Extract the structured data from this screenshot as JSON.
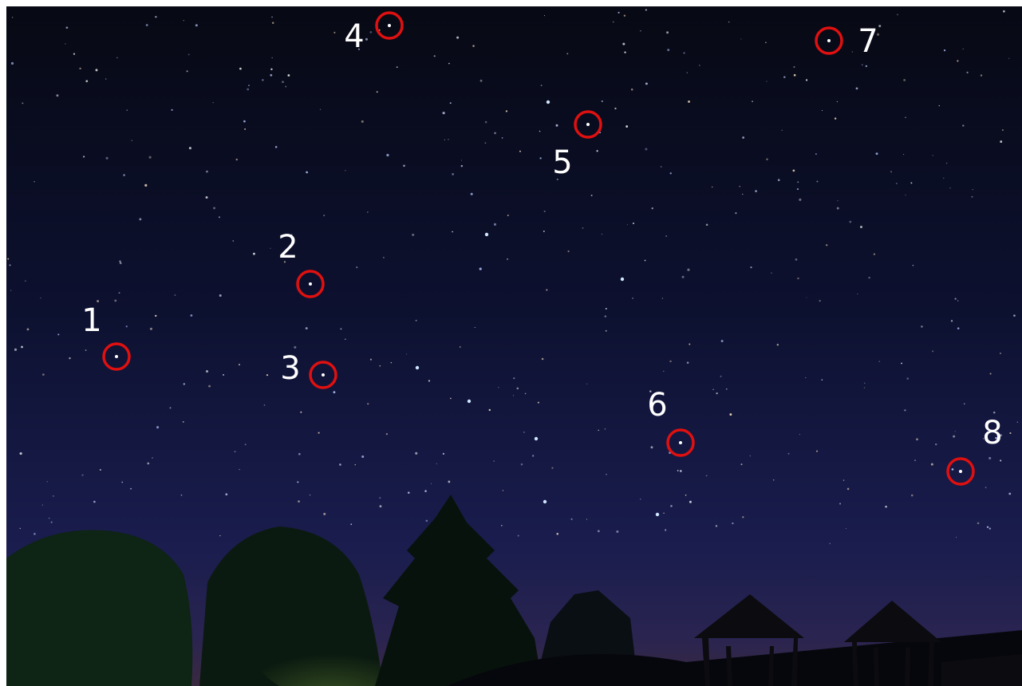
{
  "markers": [
    {
      "label": "1"
    },
    {
      "label": "2"
    },
    {
      "label": "3"
    },
    {
      "label": "4"
    },
    {
      "label": "5"
    },
    {
      "label": "6"
    },
    {
      "label": "7"
    },
    {
      "label": "8"
    }
  ]
}
